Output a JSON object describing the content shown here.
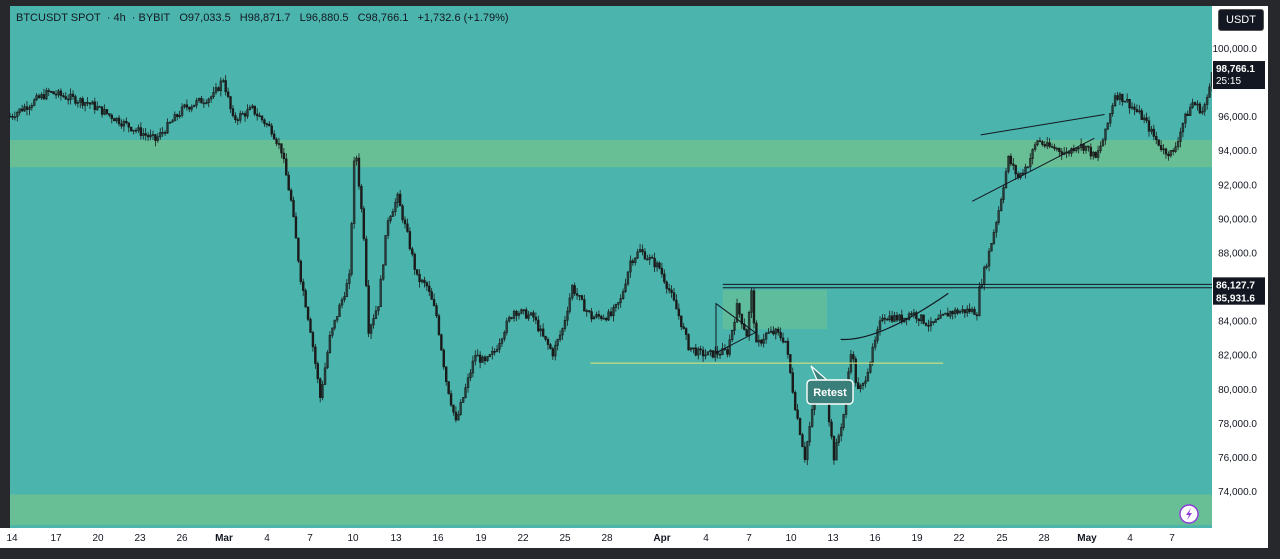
{
  "header": {
    "symbol": "BTCUSDT SPOT",
    "interval": "4h",
    "exchange": "BYBIT",
    "open": "O97,033.5",
    "high": "H98,871.7",
    "low": "L96,880.5",
    "close": "C98,766.1",
    "change": "+1,732.6 (+1.79%)"
  },
  "currency_button": "USDT",
  "price_tag": {
    "price": "98,766.1",
    "countdown": "25:15"
  },
  "level_tags": [
    "86,127.7",
    "85,931.6"
  ],
  "annotation": "Retest",
  "colors": {
    "background": "#4bb5ad",
    "zone": "#68bf96",
    "candle": "#1a1a1a",
    "tag_bg": "#131722"
  },
  "chart_data": {
    "type": "candlestick",
    "title": "",
    "xlabel": "",
    "ylabel": "",
    "x_tick_labels": [
      "14",
      "17",
      "20",
      "23",
      "26",
      "Mar",
      "4",
      "7",
      "10",
      "13",
      "16",
      "19",
      "22",
      "25",
      "28",
      "Apr",
      "4",
      "7",
      "10",
      "13",
      "16",
      "19",
      "22",
      "25",
      "28",
      "May",
      "4",
      "7"
    ],
    "y_tick_labels": [
      "74,000.0",
      "76,000.0",
      "78,000.0",
      "80,000.0",
      "82,000.0",
      "84,000.0",
      "86,000.0",
      "88,000.0",
      "90,000.0",
      "92,000.0",
      "94,000.0",
      "96,000.0",
      "98,000.0",
      "100,000.0"
    ],
    "ylim": [
      72000,
      102500
    ],
    "path": [
      [
        0,
        96000
      ],
      [
        4,
        97400
      ],
      [
        8,
        96800
      ],
      [
        12,
        95500
      ],
      [
        15,
        94600
      ],
      [
        18,
        96500
      ],
      [
        21,
        97200
      ],
      [
        22,
        98200
      ],
      [
        23,
        95800
      ],
      [
        25,
        96400
      ],
      [
        27,
        95200
      ],
      [
        28,
        94000
      ],
      [
        29,
        91000
      ],
      [
        30,
        86500
      ],
      [
        31,
        83500
      ],
      [
        32,
        79500
      ],
      [
        33,
        83000
      ],
      [
        34,
        84800
      ],
      [
        35,
        86500
      ],
      [
        35.6,
        94500
      ],
      [
        36.5,
        89000
      ],
      [
        37,
        83500
      ],
      [
        38,
        85000
      ],
      [
        39,
        90000
      ],
      [
        40,
        91200
      ],
      [
        41,
        89000
      ],
      [
        42,
        86500
      ],
      [
        43,
        86000
      ],
      [
        44,
        84300
      ],
      [
        45,
        80500
      ],
      [
        46,
        78000
      ],
      [
        47,
        80000
      ],
      [
        48,
        82000
      ],
      [
        49,
        81500
      ],
      [
        50,
        82200
      ],
      [
        51,
        83500
      ],
      [
        52,
        84600
      ],
      [
        54,
        84200
      ],
      [
        55,
        83000
      ],
      [
        56,
        82100
      ],
      [
        57,
        83500
      ],
      [
        58,
        86000
      ],
      [
        59,
        85000
      ],
      [
        60,
        84200
      ],
      [
        62,
        84300
      ],
      [
        63,
        85200
      ],
      [
        64,
        87500
      ],
      [
        65,
        88100
      ],
      [
        67,
        87100
      ],
      [
        68,
        85800
      ],
      [
        69,
        84300
      ],
      [
        70,
        82500
      ],
      [
        71,
        82100
      ],
      [
        72,
        82000
      ],
      [
        73,
        82100
      ],
      [
        74,
        82200
      ],
      [
        75,
        84800
      ],
      [
        76,
        83200
      ],
      [
        76.5,
        85600
      ],
      [
        77,
        82500
      ],
      [
        78,
        83200
      ],
      [
        79,
        83300
      ],
      [
        80,
        82800
      ],
      [
        81,
        79000
      ],
      [
        82,
        76000
      ],
      [
        83,
        79500
      ],
      [
        84,
        80500
      ],
      [
        85,
        76000
      ],
      [
        86,
        78500
      ],
      [
        86.8,
        82500
      ],
      [
        87.4,
        79800
      ],
      [
        88,
        80200
      ],
      [
        89,
        82200
      ],
      [
        90,
        84300
      ],
      [
        92,
        84100
      ],
      [
        93,
        84500
      ],
      [
        95,
        83700
      ],
      [
        97,
        84500
      ],
      [
        99,
        84600
      ],
      [
        99.9,
        84500
      ],
      [
        100,
        85800
      ],
      [
        101,
        88000
      ],
      [
        102,
        90500
      ],
      [
        103,
        93500
      ],
      [
        104,
        92400
      ],
      [
        105,
        93200
      ],
      [
        106,
        94600
      ],
      [
        107,
        94200
      ],
      [
        108,
        94100
      ],
      [
        109,
        93800
      ],
      [
        110,
        94300
      ],
      [
        111,
        94200
      ],
      [
        112,
        93500
      ],
      [
        113,
        95000
      ],
      [
        114,
        97300
      ],
      [
        115,
        97000
      ],
      [
        116,
        96400
      ],
      [
        117,
        95800
      ],
      [
        118,
        94800
      ],
      [
        119,
        94000
      ],
      [
        120,
        93800
      ],
      [
        121,
        95600
      ],
      [
        122,
        96800
      ],
      [
        123,
        96300
      ],
      [
        123.6,
        97100
      ],
      [
        124,
        98766
      ]
    ],
    "x_ticks": [
      [
        0,
        "14"
      ],
      [
        2.4,
        "17"
      ],
      [
        5,
        "20"
      ],
      [
        7.6,
        "23"
      ],
      [
        10.2,
        "26"
      ],
      [
        12.5,
        "Mar"
      ],
      [
        15.6,
        "4"
      ],
      [
        18.2,
        "7"
      ],
      [
        21,
        "10"
      ],
      [
        23.6,
        "13"
      ],
      [
        26.3,
        "16"
      ],
      [
        29,
        "19"
      ],
      [
        31.6,
        "22"
      ],
      [
        34.3,
        "25"
      ],
      [
        36.8,
        "28"
      ],
      [
        39.8,
        "Apr"
      ],
      [
        42.5,
        "4"
      ],
      [
        45.1,
        "7"
      ],
      [
        47.7,
        "10"
      ],
      [
        50.3,
        "13"
      ],
      [
        52.9,
        "16"
      ],
      [
        55.5,
        "19"
      ],
      [
        58.1,
        "22"
      ],
      [
        60.7,
        "25"
      ],
      [
        63.3,
        "28"
      ],
      [
        65.8,
        "May"
      ],
      [
        68.5,
        "4"
      ],
      [
        71.1,
        "7"
      ]
    ],
    "y_ticks": [
      74000,
      76000,
      78000,
      80000,
      82000,
      84000,
      86000,
      88000,
      90000,
      92000,
      94000,
      96000,
      98000,
      100000
    ],
    "zones": [
      [
        93000,
        94600
      ],
      [
        72000,
        73800
      ],
      [
        83500,
        85800
      ]
    ],
    "horizontal_levels": [
      86127.7,
      85931.6,
      81500
    ],
    "trendlines": [
      [
        [
          69.0,
          87500
        ],
        [
          71.6,
          86600
        ]
      ],
      [
        [
          69.0,
          87800
        ],
        [
          71.6,
          86800
        ]
      ],
      [
        [
          69.0,
          86100
        ],
        [
          71.6,
          86100
        ]
      ]
    ],
    "shapes": {
      "triangle": [
        [
          71.6,
          85500
        ],
        [
          74.8,
          83600
        ],
        [
          71.6,
          81500
        ]
      ],
      "wedge_upper": [
        [
          98.2,
          95600
        ],
        [
          110.0,
          96400
        ]
      ],
      "wedge_lower": [
        [
          98.2,
          90800
        ],
        [
          110.0,
          94300
        ]
      ],
      "curve": [
        [
          83.7,
          82700
        ],
        [
          87.0,
          82900
        ],
        [
          92.5,
          84800
        ],
        [
          95.5,
          85900
        ]
      ],
      "box_retest": [
        [
          83.0,
          86100
        ],
        [
          95.2,
          86100
        ]
      ]
    }
  }
}
